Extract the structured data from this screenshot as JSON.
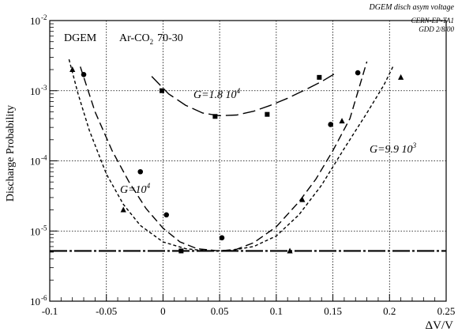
{
  "chart_data": {
    "type": "scatter",
    "scale": {
      "y": "log"
    },
    "xlim": [
      -0.1,
      0.25
    ],
    "ylim": [
      1e-06,
      0.01
    ],
    "grid": true,
    "xlabel": "ΔV/V",
    "ylabel": "Discharge Probability",
    "corner_title": "DGEM disch asym voltage",
    "ref_lines": [
      "CERN-EP-TA1",
      "GDD 2/8/00"
    ],
    "header": {
      "detector": "DGEM",
      "gas": "Ar-CO",
      "gas_sub": "2",
      "ratio": "70-30"
    },
    "x_ticks": [
      {
        "v": -0.1,
        "label": "-0.1"
      },
      {
        "v": -0.05,
        "label": "-0.05"
      },
      {
        "v": 0,
        "label": "0"
      },
      {
        "v": 0.05,
        "label": "0.05"
      },
      {
        "v": 0.1,
        "label": "0.1"
      },
      {
        "v": 0.15,
        "label": "0.15"
      },
      {
        "v": 0.2,
        "label": "0.2"
      },
      {
        "v": 0.25,
        "label": "0.25"
      }
    ],
    "y_ticks": [
      {
        "exp": -6,
        "label": "10",
        "sup": "-6"
      },
      {
        "exp": -5,
        "label": "10",
        "sup": "-5"
      },
      {
        "exp": -4,
        "label": "10",
        "sup": "-4"
      },
      {
        "exp": -3,
        "label": "10",
        "sup": "-3"
      },
      {
        "exp": -2,
        "label": "10",
        "sup": "-2"
      }
    ],
    "baseline": 5.2e-06,
    "series": [
      {
        "marker": "circle",
        "curve_label": {
          "text": "G=10",
          "sup": "4"
        },
        "points": [
          [
            -0.07,
            0.0017
          ],
          [
            -0.02,
            7e-05
          ],
          [
            0.003,
            1.7e-05
          ],
          [
            0.052,
            8e-06
          ],
          [
            0.148,
            0.00033
          ],
          [
            0.172,
            0.0018
          ]
        ],
        "fit": [
          [
            -0.073,
            0.0022
          ],
          [
            -0.06,
            0.0005
          ],
          [
            -0.045,
            0.00014
          ],
          [
            -0.03,
            5e-05
          ],
          [
            -0.015,
            2.1e-05
          ],
          [
            0,
            1.1e-05
          ],
          [
            0.015,
            7e-06
          ],
          [
            0.03,
            5.6e-06
          ],
          [
            0.05,
            5.2e-06
          ],
          [
            0.065,
            5.5e-06
          ],
          [
            0.08,
            6.8e-06
          ],
          [
            0.1,
            1.15e-05
          ],
          [
            0.12,
            2.6e-05
          ],
          [
            0.135,
            5.5e-05
          ],
          [
            0.15,
            0.00014
          ],
          [
            0.165,
            0.0004
          ],
          [
            0.18,
            0.0026
          ]
        ]
      },
      {
        "marker": "square",
        "curve_label": {
          "text": "G=1.8  10",
          "sup": "4"
        },
        "points": [
          [
            -0.001,
            0.001
          ],
          [
            0.046,
            0.00043
          ],
          [
            0.092,
            0.00046
          ],
          [
            0.138,
            0.00155
          ],
          [
            0.016,
            5.2e-06
          ]
        ],
        "fit": [
          [
            -0.01,
            0.0016
          ],
          [
            0.005,
            0.0009
          ],
          [
            0.02,
            0.00062
          ],
          [
            0.035,
            0.00048
          ],
          [
            0.05,
            0.00044
          ],
          [
            0.065,
            0.00045
          ],
          [
            0.08,
            0.00051
          ],
          [
            0.095,
            0.00062
          ],
          [
            0.11,
            0.00078
          ],
          [
            0.125,
            0.00102
          ],
          [
            0.14,
            0.00135
          ],
          [
            0.153,
            0.0018
          ]
        ]
      },
      {
        "marker": "triangle",
        "curve_label": {
          "text": "G=9.9  10",
          "sup": "3"
        },
        "points": [
          [
            -0.08,
            0.002
          ],
          [
            -0.035,
            2e-05
          ],
          [
            0.123,
            2.8e-05
          ],
          [
            0.158,
            0.00037
          ],
          [
            0.21,
            0.00155
          ],
          [
            0.112,
            5.2e-06
          ]
        ],
        "fit": [
          [
            -0.083,
            0.0028
          ],
          [
            -0.075,
            0.0009
          ],
          [
            -0.065,
            0.00027
          ],
          [
            -0.05,
            6.5e-05
          ],
          [
            -0.035,
            2.4e-05
          ],
          [
            -0.02,
            1.2e-05
          ],
          [
            0,
            7e-06
          ],
          [
            0.02,
            5.6e-06
          ],
          [
            0.04,
            5.2e-06
          ],
          [
            0.06,
            5.3e-06
          ],
          [
            0.08,
            6e-06
          ],
          [
            0.1,
            8.5e-06
          ],
          [
            0.12,
            1.7e-05
          ],
          [
            0.14,
            4.5e-05
          ],
          [
            0.16,
            0.00015
          ],
          [
            0.18,
            0.00048
          ],
          [
            0.195,
            0.0012
          ],
          [
            0.203,
            0.0022
          ]
        ]
      }
    ]
  }
}
